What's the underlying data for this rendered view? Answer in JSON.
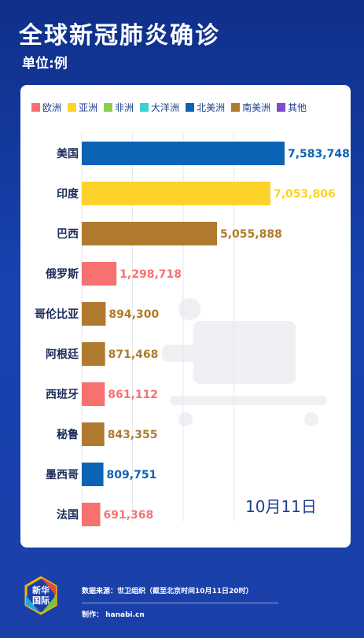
{
  "header": {
    "title": "全球新冠肺炎确诊",
    "unit": "单位:例"
  },
  "legend": [
    {
      "label": "欧洲",
      "color": "#f87171"
    },
    {
      "label": "亚洲",
      "color": "#fdd22a"
    },
    {
      "label": "非洲",
      "color": "#8ccf4d"
    },
    {
      "label": "大洋洲",
      "color": "#3ccfcf"
    },
    {
      "label": "北美洲",
      "color": "#0b63b5"
    },
    {
      "label": "南美洲",
      "color": "#b07a2e"
    },
    {
      "label": "其他",
      "color": "#7b4fc9"
    }
  ],
  "chart_data": {
    "type": "bar",
    "orientation": "horizontal",
    "categories": [
      "美国",
      "印度",
      "巴西",
      "俄罗斯",
      "哥伦比亚",
      "阿根廷",
      "西班牙",
      "秘鲁",
      "墨西哥",
      "法国"
    ],
    "values": [
      7583748,
      7053806,
      5055888,
      1298718,
      894300,
      871468,
      861112,
      843355,
      809751,
      691368
    ],
    "value_labels": [
      "7,583,748",
      "7,053,806",
      "5,055,888",
      "1,298,718",
      "894,300",
      "871,468",
      "861,112",
      "843,355",
      "809,751",
      "691,368"
    ],
    "regions": [
      "北美洲",
      "亚洲",
      "南美洲",
      "欧洲",
      "南美洲",
      "南美洲",
      "欧洲",
      "南美洲",
      "北美洲",
      "欧洲"
    ],
    "title": "全球新冠肺炎确诊",
    "xlim": [
      0,
      7583748
    ],
    "grid": true,
    "legend_position": "top"
  },
  "date_label": "10月11日",
  "footer": {
    "source": "数据来源：世卫组织（截至北京时间10月11日20时）",
    "maker": "制作： hanabi.cn",
    "logo_text": "新华\n国际"
  }
}
